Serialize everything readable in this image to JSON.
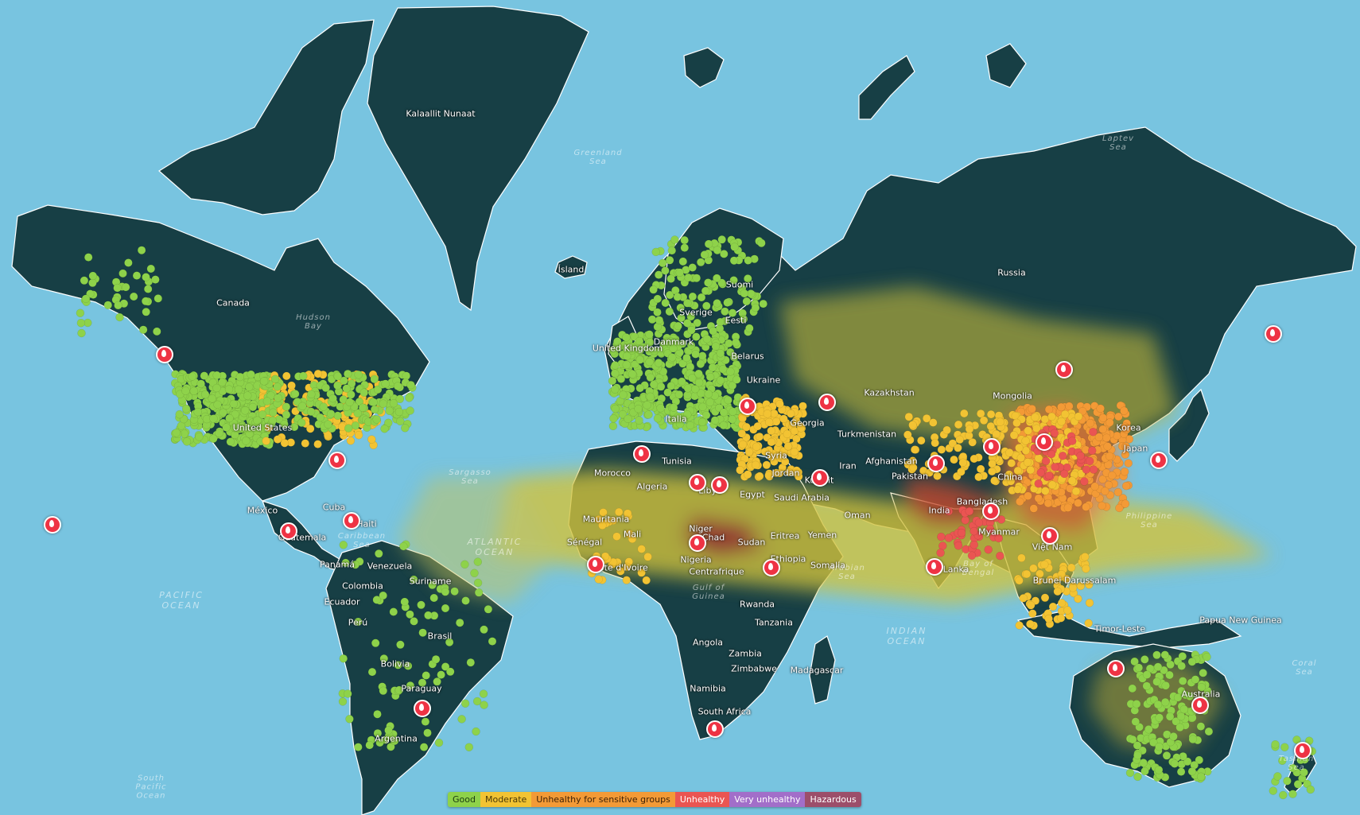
{
  "map": {
    "colors": {
      "ocean": "#78c4e0",
      "land": "#173f45",
      "coast": "#ffffff",
      "good": "#8ed24a",
      "moderate": "#f2c333",
      "unhealthy_sensitive": "#f39a36",
      "unhealthy": "#ea5552",
      "very_unhealthy": "#a26ec9",
      "hazardous": "#9c4e6a"
    },
    "country_labels": [
      "Kalaallit Nunaat",
      "Canada",
      "Russia",
      "Ísland",
      "Suomi",
      "Sverige",
      "Eesti",
      "United Kingdom",
      "Danmark",
      "Belarus",
      "Ukraine",
      "Kazakhstan",
      "Mongolia",
      "Italia",
      "Georgia",
      "Turkmenistan",
      "Afghanistan",
      "Pakistan",
      "Iran",
      "United States",
      "México",
      "Cuba",
      "Haiti",
      "Guatemala",
      "Panamá",
      "Venezuela",
      "Suriname",
      "Colombia",
      "Ecuador",
      "Perú",
      "Brasil",
      "Bolivia",
      "Paraguay",
      "Argentina",
      "Morocco",
      "Algeria",
      "Tunisia",
      "Libya",
      "Egypt",
      "Mauritania",
      "Mali",
      "Niger",
      "Chad",
      "Sudan",
      "Eritrea",
      "Sénégal",
      "Côte d'Ivoire",
      "Nigeria",
      "Centrafrique",
      "Ethiopia",
      "Somalia",
      "Rwanda",
      "Tanzania",
      "Angola",
      "Zambia",
      "Zimbabwe",
      "Namibia",
      "South Africa",
      "Madagascar",
      "Syria",
      "Jordan",
      "Kuwait",
      "Saudi Arabia",
      "Yemen",
      "Oman",
      "India",
      "Bangladesh",
      "Myanmar",
      "Sri Lanka",
      "Việt Nam",
      "Korea",
      "Japan",
      "Brunei Darussalam",
      "Timor-Leste",
      "Papua New Guinea",
      "Australia",
      "China"
    ],
    "ocean_labels": [
      "ATLANTIC\nOCEAN",
      "PACIFIC\nOCEAN",
      "INDIAN\nOCEAN",
      "Greenland\nSea",
      "Laptev\nSea",
      "Hudson\nBay",
      "Sargasso\nSea",
      "Caribbean\nSea",
      "Philippine\nSea",
      "Coral\nSea",
      "Tasman\nSea",
      "Gulf of\nGuinea",
      "Arabian\nSea",
      "Bay of\nBengal",
      "South\nPacific\nOcean"
    ]
  },
  "legend": {
    "items": [
      {
        "label": "Good",
        "color": "#8ed24a",
        "text_color": "#1b3a12"
      },
      {
        "label": "Moderate",
        "color": "#f2c333",
        "text_color": "#4a3a08"
      },
      {
        "label": "Unhealthy for sensitive groups",
        "color": "#f39a36",
        "text_color": "#3f2206"
      },
      {
        "label": "Unhealthy",
        "color": "#ea5552",
        "text_color": "#ffffff"
      },
      {
        "label": "Very unhealthy",
        "color": "#a26ec9",
        "text_color": "#ffffff"
      },
      {
        "label": "Hazardous",
        "color": "#9c4e6a",
        "text_color": "#ffffff"
      }
    ]
  }
}
